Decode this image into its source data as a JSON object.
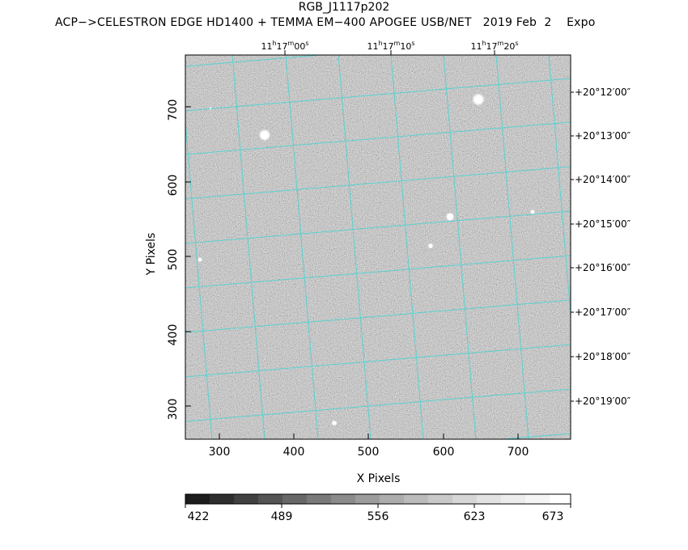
{
  "title": "RGB_J1117p202",
  "subtitle": "ACP−>CELESTRON EDGE HD1400 + TEMMA EM−400 APOGEE USB/NET   2019 Feb  2    Expo",
  "ra_labels": [
    {
      "h": "11",
      "m": "17",
      "s": "00"
    },
    {
      "h": "11",
      "m": "17",
      "s": "10"
    },
    {
      "h": "11",
      "m": "17",
      "s": "20"
    }
  ],
  "dec_labels": [
    "+20°12′00″",
    "+20°13′00″",
    "+20°14′00″",
    "+20°15′00″",
    "+20°16′00″",
    "+20°17′00″",
    "+20°18′00″",
    "+20°19′00″"
  ],
  "y_axis_label": "Y Pixels",
  "x_axis_label": "X Pixels",
  "y_ticks": [
    "700",
    "600",
    "500",
    "400",
    "300"
  ],
  "x_ticks": [
    "300",
    "400",
    "500",
    "600",
    "700"
  ],
  "colorbar_labels": [
    "422",
    "489",
    "556",
    "623",
    "673"
  ],
  "colors": {
    "grid": "#4fd2d2",
    "background": "#ffffff"
  }
}
